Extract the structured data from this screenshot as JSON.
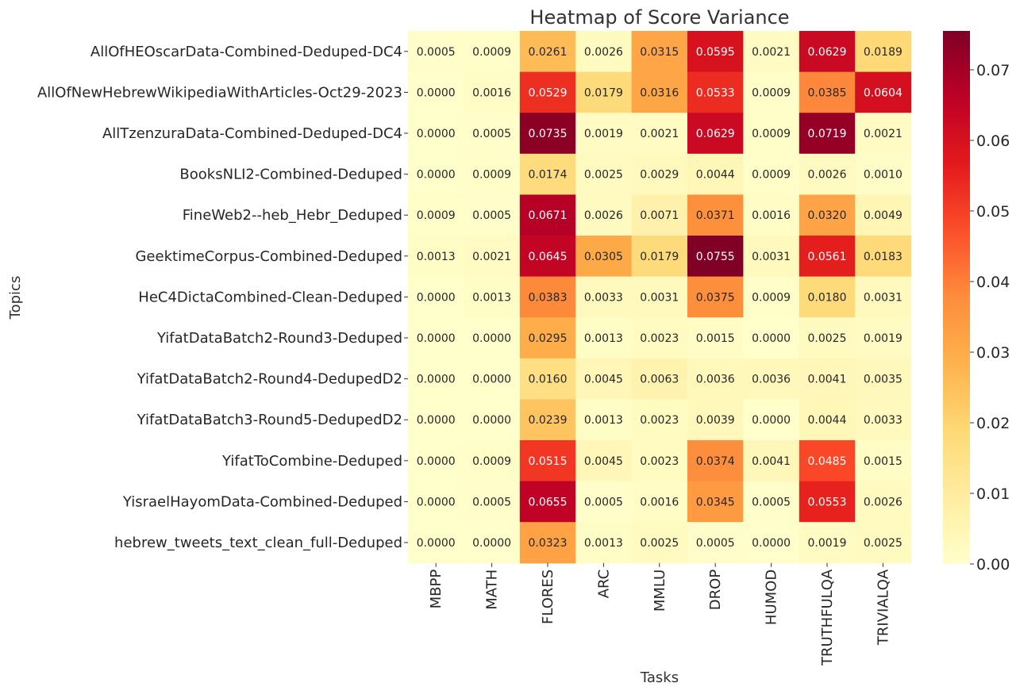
{
  "chart_data": {
    "type": "heatmap",
    "title": "Heatmap of Score Variance",
    "xlabel": "Tasks",
    "ylabel": "Topics",
    "colormap": "YlOrRd",
    "colorbar": {
      "min": 0.0,
      "max": 0.0755,
      "ticks": [
        "0.00",
        "0.01",
        "0.02",
        "0.03",
        "0.04",
        "0.05",
        "0.06",
        "0.07"
      ],
      "tick_values": [
        0.0,
        0.01,
        0.02,
        0.03,
        0.04,
        0.05,
        0.06,
        0.07
      ]
    },
    "grid": false,
    "legend": "colorbar-right",
    "columns": [
      "MBPP",
      "MATH",
      "FLORES",
      "ARC",
      "MMLU",
      "DROP",
      "HUMOD",
      "TRUTHFULQA",
      "TRIVIALQA"
    ],
    "rows": [
      "AllOfHEOscarData-Combined-Deduped-DC4",
      "AllOfNewHebrewWikipediaWithArticles-Oct29-2023",
      "AllTzenzuraData-Combined-Deduped-DC4",
      "BooksNLI2-Combined-Deduped",
      "FineWeb2--heb_Hebr_Deduped",
      "GeektimeCorpus-Combined-Deduped",
      "HeC4DictaCombined-Clean-Deduped",
      "YifatDataBatch2-Round3-Deduped",
      "YifatDataBatch2-Round4-DedupedD2",
      "YifatDataBatch3-Round5-DedupedD2",
      "YifatToCombine-Deduped",
      "YisraelHayomData-Combined-Deduped",
      "hebrew_tweets_text_clean_full-Deduped"
    ],
    "cell_labels": [
      [
        "0.0005",
        "0.0009",
        "0.0261",
        "0.0026",
        "0.0315",
        "0.0595",
        "0.0021",
        "0.0629",
        "0.0189"
      ],
      [
        "0.0000",
        "0.0016",
        "0.0529",
        "0.0179",
        "0.0316",
        "0.0533",
        "0.0009",
        "0.0385",
        "0.0604"
      ],
      [
        "0.0000",
        "0.0005",
        "0.0735",
        "0.0019",
        "0.0021",
        "0.0629",
        "0.0009",
        "0.0719",
        "0.0021"
      ],
      [
        "0.0000",
        "0.0009",
        "0.0174",
        "0.0025",
        "0.0029",
        "0.0044",
        "0.0009",
        "0.0026",
        "0.0010"
      ],
      [
        "0.0009",
        "0.0005",
        "0.0671",
        "0.0026",
        "0.0071",
        "0.0371",
        "0.0016",
        "0.0320",
        "0.0049"
      ],
      [
        "0.0013",
        "0.0021",
        "0.0645",
        "0.0305",
        "0.0179",
        "0.0755",
        "0.0031",
        "0.0561",
        "0.0183"
      ],
      [
        "0.0000",
        "0.0013",
        "0.0383",
        "0.0033",
        "0.0031",
        "0.0375",
        "0.0009",
        "0.0180",
        "0.0031"
      ],
      [
        "0.0000",
        "0.0000",
        "0.0295",
        "0.0013",
        "0.0023",
        "0.0015",
        "0.0000",
        "0.0025",
        "0.0019"
      ],
      [
        "0.0000",
        "0.0000",
        "0.0160",
        "0.0045",
        "0.0063",
        "0.0036",
        "0.0036",
        "0.0041",
        "0.0035"
      ],
      [
        "0.0000",
        "0.0000",
        "0.0239",
        "0.0013",
        "0.0023",
        "0.0039",
        "0.0000",
        "0.0044",
        "0.0033"
      ],
      [
        "0.0000",
        "0.0009",
        "0.0515",
        "0.0045",
        "0.0023",
        "0.0374",
        "0.0041",
        "0.0485",
        "0.0015"
      ],
      [
        "0.0000",
        "0.0005",
        "0.0655",
        "0.0005",
        "0.0016",
        "0.0345",
        "0.0005",
        "0.0553",
        "0.0026"
      ],
      [
        "0.0000",
        "0.0000",
        "0.0323",
        "0.0013",
        "0.0025",
        "0.0005",
        "0.0000",
        "0.0019",
        "0.0025"
      ]
    ]
  }
}
